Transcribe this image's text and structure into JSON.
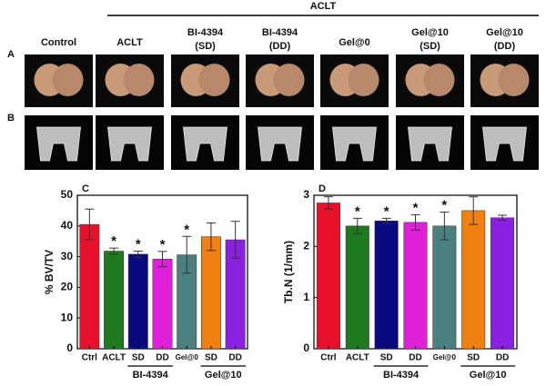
{
  "figure": {
    "header": "ACLT",
    "row_labels": [
      "A",
      "B"
    ],
    "columns": [
      [
        "Control"
      ],
      [
        "ACLT"
      ],
      [
        "BI-4394",
        "(SD)"
      ],
      [
        "BI-4394",
        "(DD)"
      ],
      [
        "Gel@0"
      ],
      [
        "Gel@10",
        "(SD)"
      ],
      [
        "Gel@10",
        "(DD)"
      ]
    ]
  },
  "chart_data": [
    {
      "type": "bar",
      "panel": "C",
      "ylabel": "% BV/TV",
      "categories": [
        "Ctrl",
        "ACLT",
        "SD",
        "DD",
        "Gel@0",
        "SD",
        "DD"
      ],
      "values": [
        40.5,
        31.8,
        30.8,
        29.2,
        30.6,
        36.5,
        35.5
      ],
      "errors": [
        5,
        1,
        1,
        2.5,
        6,
        4.5,
        6
      ],
      "significance": [
        null,
        "*",
        "*",
        "*",
        "*",
        null,
        null
      ],
      "colors": [
        "#e8102a",
        "#1e7a1e",
        "#0a0a80",
        "#e020d8",
        "#4a8080",
        "#f08010",
        "#8a20e0"
      ],
      "groups": [
        {
          "name": "BI-4394",
          "start": 2,
          "end": 3
        },
        {
          "name": "Gel@10",
          "start": 5,
          "end": 6
        }
      ],
      "ylim": [
        0,
        50
      ],
      "yticks": [
        0,
        10,
        20,
        30,
        40,
        50
      ]
    },
    {
      "type": "bar",
      "panel": "D",
      "ylabel": "Tb.N (1/mm)",
      "categories": [
        "Ctrl",
        "ACLT",
        "SD",
        "DD",
        "Gel@0",
        "SD",
        "DD"
      ],
      "values": [
        2.85,
        2.4,
        2.5,
        2.47,
        2.4,
        2.7,
        2.56
      ],
      "errors": [
        0.12,
        0.15,
        0.05,
        0.15,
        0.27,
        0.27,
        0.05
      ],
      "significance": [
        null,
        "*",
        "*",
        "*",
        "*",
        null,
        null
      ],
      "colors": [
        "#e8102a",
        "#1e7a1e",
        "#0a0a80",
        "#e020d8",
        "#4a8080",
        "#f08010",
        "#8a20e0"
      ],
      "groups": [
        {
          "name": "BI-4394",
          "start": 2,
          "end": 3
        },
        {
          "name": "Gel@10",
          "start": 5,
          "end": 6
        }
      ],
      "ylim": [
        0,
        3
      ],
      "yticks": [
        0,
        1,
        2,
        3
      ]
    }
  ]
}
